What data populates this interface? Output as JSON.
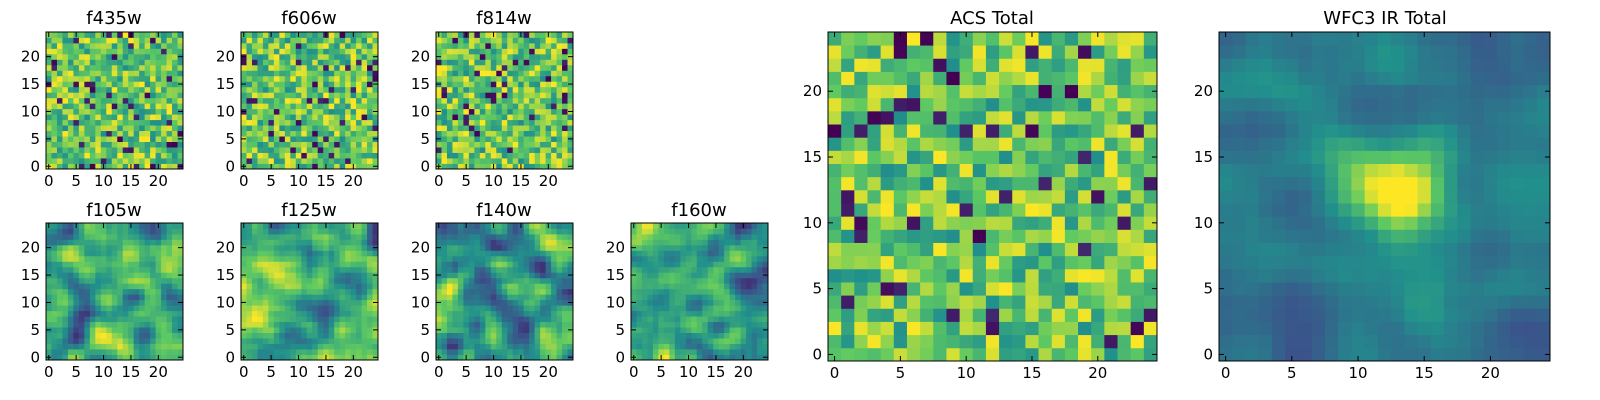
{
  "colormap": [
    "#440154",
    "#3b528b",
    "#21918c",
    "#5ec962",
    "#fde725"
  ],
  "chart_data": [
    {
      "type": "heatmap",
      "title": "f435w",
      "size": 25,
      "xticks": [
        "0",
        "5",
        "10",
        "15",
        "20"
      ],
      "yticks": [
        "0",
        "5",
        "10",
        "15",
        "20"
      ],
      "pattern": "noise",
      "seed": 11
    },
    {
      "type": "heatmap",
      "title": "f606w",
      "size": 25,
      "xticks": [
        "0",
        "5",
        "10",
        "15",
        "20"
      ],
      "yticks": [
        "0",
        "5",
        "10",
        "15",
        "20"
      ],
      "pattern": "noise",
      "seed": 23
    },
    {
      "type": "heatmap",
      "title": "f814w",
      "size": 25,
      "xticks": [
        "0",
        "5",
        "10",
        "15",
        "20"
      ],
      "yticks": [
        "0",
        "5",
        "10",
        "15",
        "20"
      ],
      "pattern": "noise",
      "seed": 37
    },
    {
      "type": "heatmap",
      "title": "f105w",
      "size": 25,
      "xticks": [
        "0",
        "5",
        "10",
        "15",
        "20"
      ],
      "yticks": [
        "0",
        "5",
        "10",
        "15",
        "20"
      ],
      "pattern": "smooth",
      "seed": 41
    },
    {
      "type": "heatmap",
      "title": "f125w",
      "size": 25,
      "xticks": [
        "0",
        "5",
        "10",
        "15",
        "20"
      ],
      "yticks": [
        "0",
        "5",
        "10",
        "15",
        "20"
      ],
      "pattern": "smooth",
      "seed": 53
    },
    {
      "type": "heatmap",
      "title": "f140w",
      "size": 25,
      "xticks": [
        "0",
        "5",
        "10",
        "15",
        "20"
      ],
      "yticks": [
        "0",
        "5",
        "10",
        "15",
        "20"
      ],
      "pattern": "smooth",
      "seed": 67
    },
    {
      "type": "heatmap",
      "title": "f160w",
      "size": 25,
      "xticks": [
        "0",
        "5",
        "10",
        "15",
        "20"
      ],
      "yticks": [
        "0",
        "5",
        "10",
        "15",
        "20"
      ],
      "pattern": "smooth",
      "seed": 79
    },
    {
      "type": "heatmap",
      "title": "ACS Total",
      "size": 25,
      "xticks": [
        "0",
        "5",
        "10",
        "15",
        "20"
      ],
      "yticks": [
        "0",
        "5",
        "10",
        "15",
        "20"
      ],
      "pattern": "noise",
      "seed": 83
    },
    {
      "type": "heatmap",
      "title": "WFC3 IR Total",
      "size": 25,
      "xticks": [
        "0",
        "5",
        "10",
        "15",
        "20"
      ],
      "yticks": [
        "0",
        "5",
        "10",
        "15",
        "20"
      ],
      "pattern": "source",
      "seed": 97
    }
  ]
}
